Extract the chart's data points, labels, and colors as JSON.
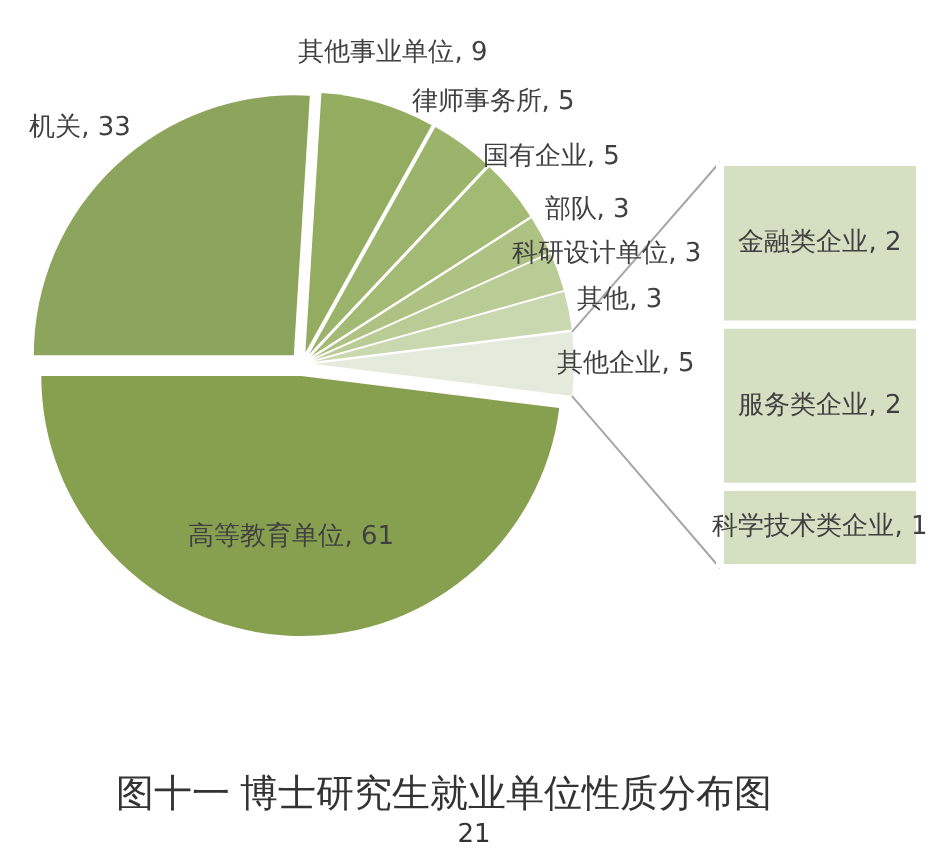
{
  "chart_data": [
    {
      "type": "pie",
      "title": "图十一 博士研究生就业单位性质分布图",
      "annotations": [
        "21"
      ],
      "categories": [
        "高等教育单位",
        "机关",
        "其他事业单位",
        "律师事务所",
        "国有企业",
        "部队",
        "科研设计单位",
        "其他",
        "其他企业"
      ],
      "values": [
        61,
        33,
        9,
        5,
        5,
        3,
        3,
        3,
        5
      ],
      "value_labels": [
        ", 61",
        ", 33",
        ", 9",
        ", 5",
        ", 5",
        ", 3",
        ", 3",
        ", 3",
        ", 5"
      ],
      "colors": [
        "#87a050",
        "#8ca45c",
        "#93ac60",
        "#9bb36a",
        "#a3ba74",
        "#aec383",
        "#b9cc95",
        "#cad8b0",
        "#e5ebdc"
      ]
    },
    {
      "type": "bar",
      "stacked": true,
      "categories": [
        null
      ],
      "series": [
        {
          "name": "科学技术类企业",
          "color": "#d5e0c3",
          "values": [
            1
          ],
          "value_labels": [
            ", 1"
          ]
        },
        {
          "name": "服务类企业",
          "color": "#d5e0c3",
          "values": [
            2
          ],
          "value_labels": [
            ", 2"
          ]
        },
        {
          "name": "金融类企业",
          "color": "#d5e0c3",
          "values": [
            2
          ],
          "value_labels": [
            ", 2"
          ]
        }
      ],
      "tick_labels": false
    }
  ]
}
